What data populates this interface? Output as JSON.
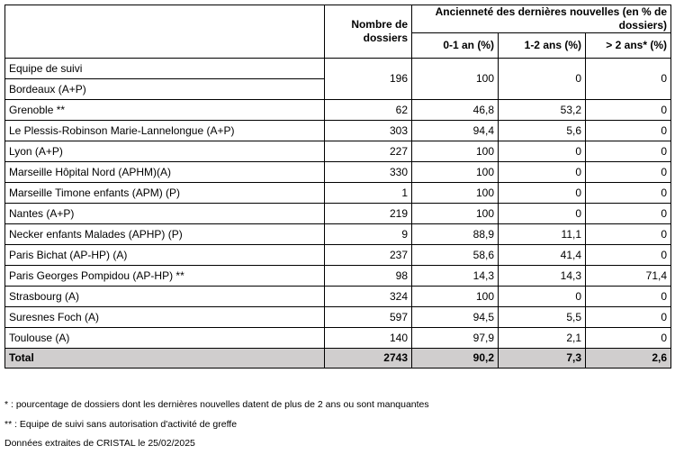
{
  "header": {
    "count": "Nombre de dossiers",
    "group": "Ancienneté des dernières nouvelles (en % de dossiers)",
    "sub": [
      "0-1 an (%)",
      "1-2 ans (%)",
      "> 2 ans* (%)"
    ]
  },
  "group_label": "Equipe de suivi",
  "rows": [
    [
      "Bordeaux (A+P)",
      "196",
      "100",
      "0",
      "0"
    ],
    [
      "Grenoble **",
      "62",
      "46,8",
      "53,2",
      "0"
    ],
    [
      "Le Plessis-Robinson Marie-Lannelongue (A+P)",
      "303",
      "94,4",
      "5,6",
      "0"
    ],
    [
      "Lyon (A+P)",
      "227",
      "100",
      "0",
      "0"
    ],
    [
      "Marseille Hôpital Nord (APHM)(A)",
      "330",
      "100",
      "0",
      "0"
    ],
    [
      "Marseille Timone enfants (APM) (P)",
      "1",
      "100",
      "0",
      "0"
    ],
    [
      "Nantes (A+P)",
      "219",
      "100",
      "0",
      "0"
    ],
    [
      "Necker enfants Malades (APHP) (P)",
      "9",
      "88,9",
      "11,1",
      "0"
    ],
    [
      "Paris Bichat (AP-HP) (A)",
      "237",
      "58,6",
      "41,4",
      "0"
    ],
    [
      "Paris Georges Pompidou (AP-HP) **",
      "98",
      "14,3",
      "14,3",
      "71,4"
    ],
    [
      "Strasbourg (A)",
      "324",
      "100",
      "0",
      "0"
    ],
    [
      "Suresnes Foch (A)",
      "597",
      "94,5",
      "5,5",
      "0"
    ],
    [
      "Toulouse (A)",
      "140",
      "97,9",
      "2,1",
      "0"
    ]
  ],
  "total": [
    "Total",
    "2743",
    "90,2",
    "7,3",
    "2,6"
  ],
  "footnotes": [
    "* : pourcentage de dossiers dont les dernières nouvelles datent de plus de 2 ans ou sont manquantes",
    "** : Equipe de suivi sans autorisation d'activité de greffe",
    "Données extraites de CRISTAL le 25/02/2025"
  ]
}
